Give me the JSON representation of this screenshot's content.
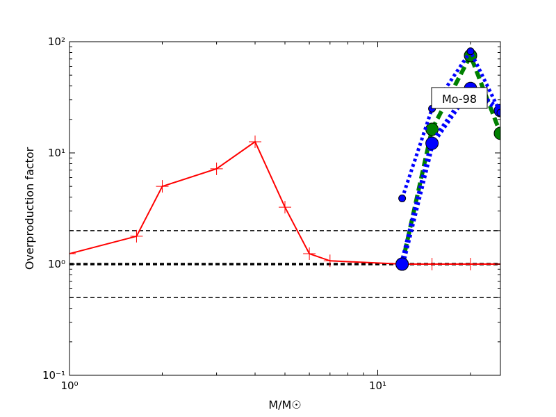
{
  "chart_data": {
    "type": "line",
    "xlabel": "M/M☉",
    "ylabel": "Overproduction factor",
    "xscale": "log",
    "yscale": "log",
    "xlim": [
      1,
      25
    ],
    "ylim": [
      0.1,
      100
    ],
    "xticks": [
      {
        "value": 1,
        "label": "10⁰"
      },
      {
        "value": 10,
        "label": "10¹"
      }
    ],
    "yticks": [
      {
        "value": 0.1,
        "label": "10⁻¹"
      },
      {
        "value": 1,
        "label": "10⁰"
      },
      {
        "value": 10,
        "label": "10¹"
      },
      {
        "value": 100,
        "label": "10²"
      }
    ],
    "hlines": [
      {
        "y": 2,
        "width": 1.5
      },
      {
        "y": 1,
        "width": 3.5
      },
      {
        "y": 0.5,
        "width": 1.5
      }
    ],
    "annotation": "Mo-98",
    "series": [
      {
        "color": "#ff0000",
        "style": "solid",
        "width": 2,
        "marker": "plus",
        "x": [
          1,
          1.65,
          2,
          3,
          4,
          5,
          6,
          7,
          12,
          15,
          20,
          25
        ],
        "values": [
          1.24,
          1.78,
          5.0,
          7.2,
          12.6,
          3.25,
          1.24,
          1.07,
          1.0,
          1.0,
          1.0,
          1.0
        ]
      },
      {
        "color": "#008000",
        "style": "dashed",
        "width": 6,
        "marker": "big-circle",
        "x": [
          12,
          15,
          20,
          25
        ],
        "values": [
          1.0,
          16.3,
          75,
          15
        ]
      },
      {
        "color": "#0000ff",
        "style": "dotted",
        "width": 8,
        "marker": "big-circle",
        "x": [
          12,
          15,
          20,
          25
        ],
        "values": [
          1.0,
          12.2,
          38,
          24
        ]
      },
      {
        "color": "#0000ff",
        "style": "dotted",
        "width": 5,
        "marker": "small-circle",
        "x": [
          12,
          15,
          20,
          25
        ],
        "values": [
          3.9,
          25,
          82,
          23
        ]
      }
    ]
  }
}
